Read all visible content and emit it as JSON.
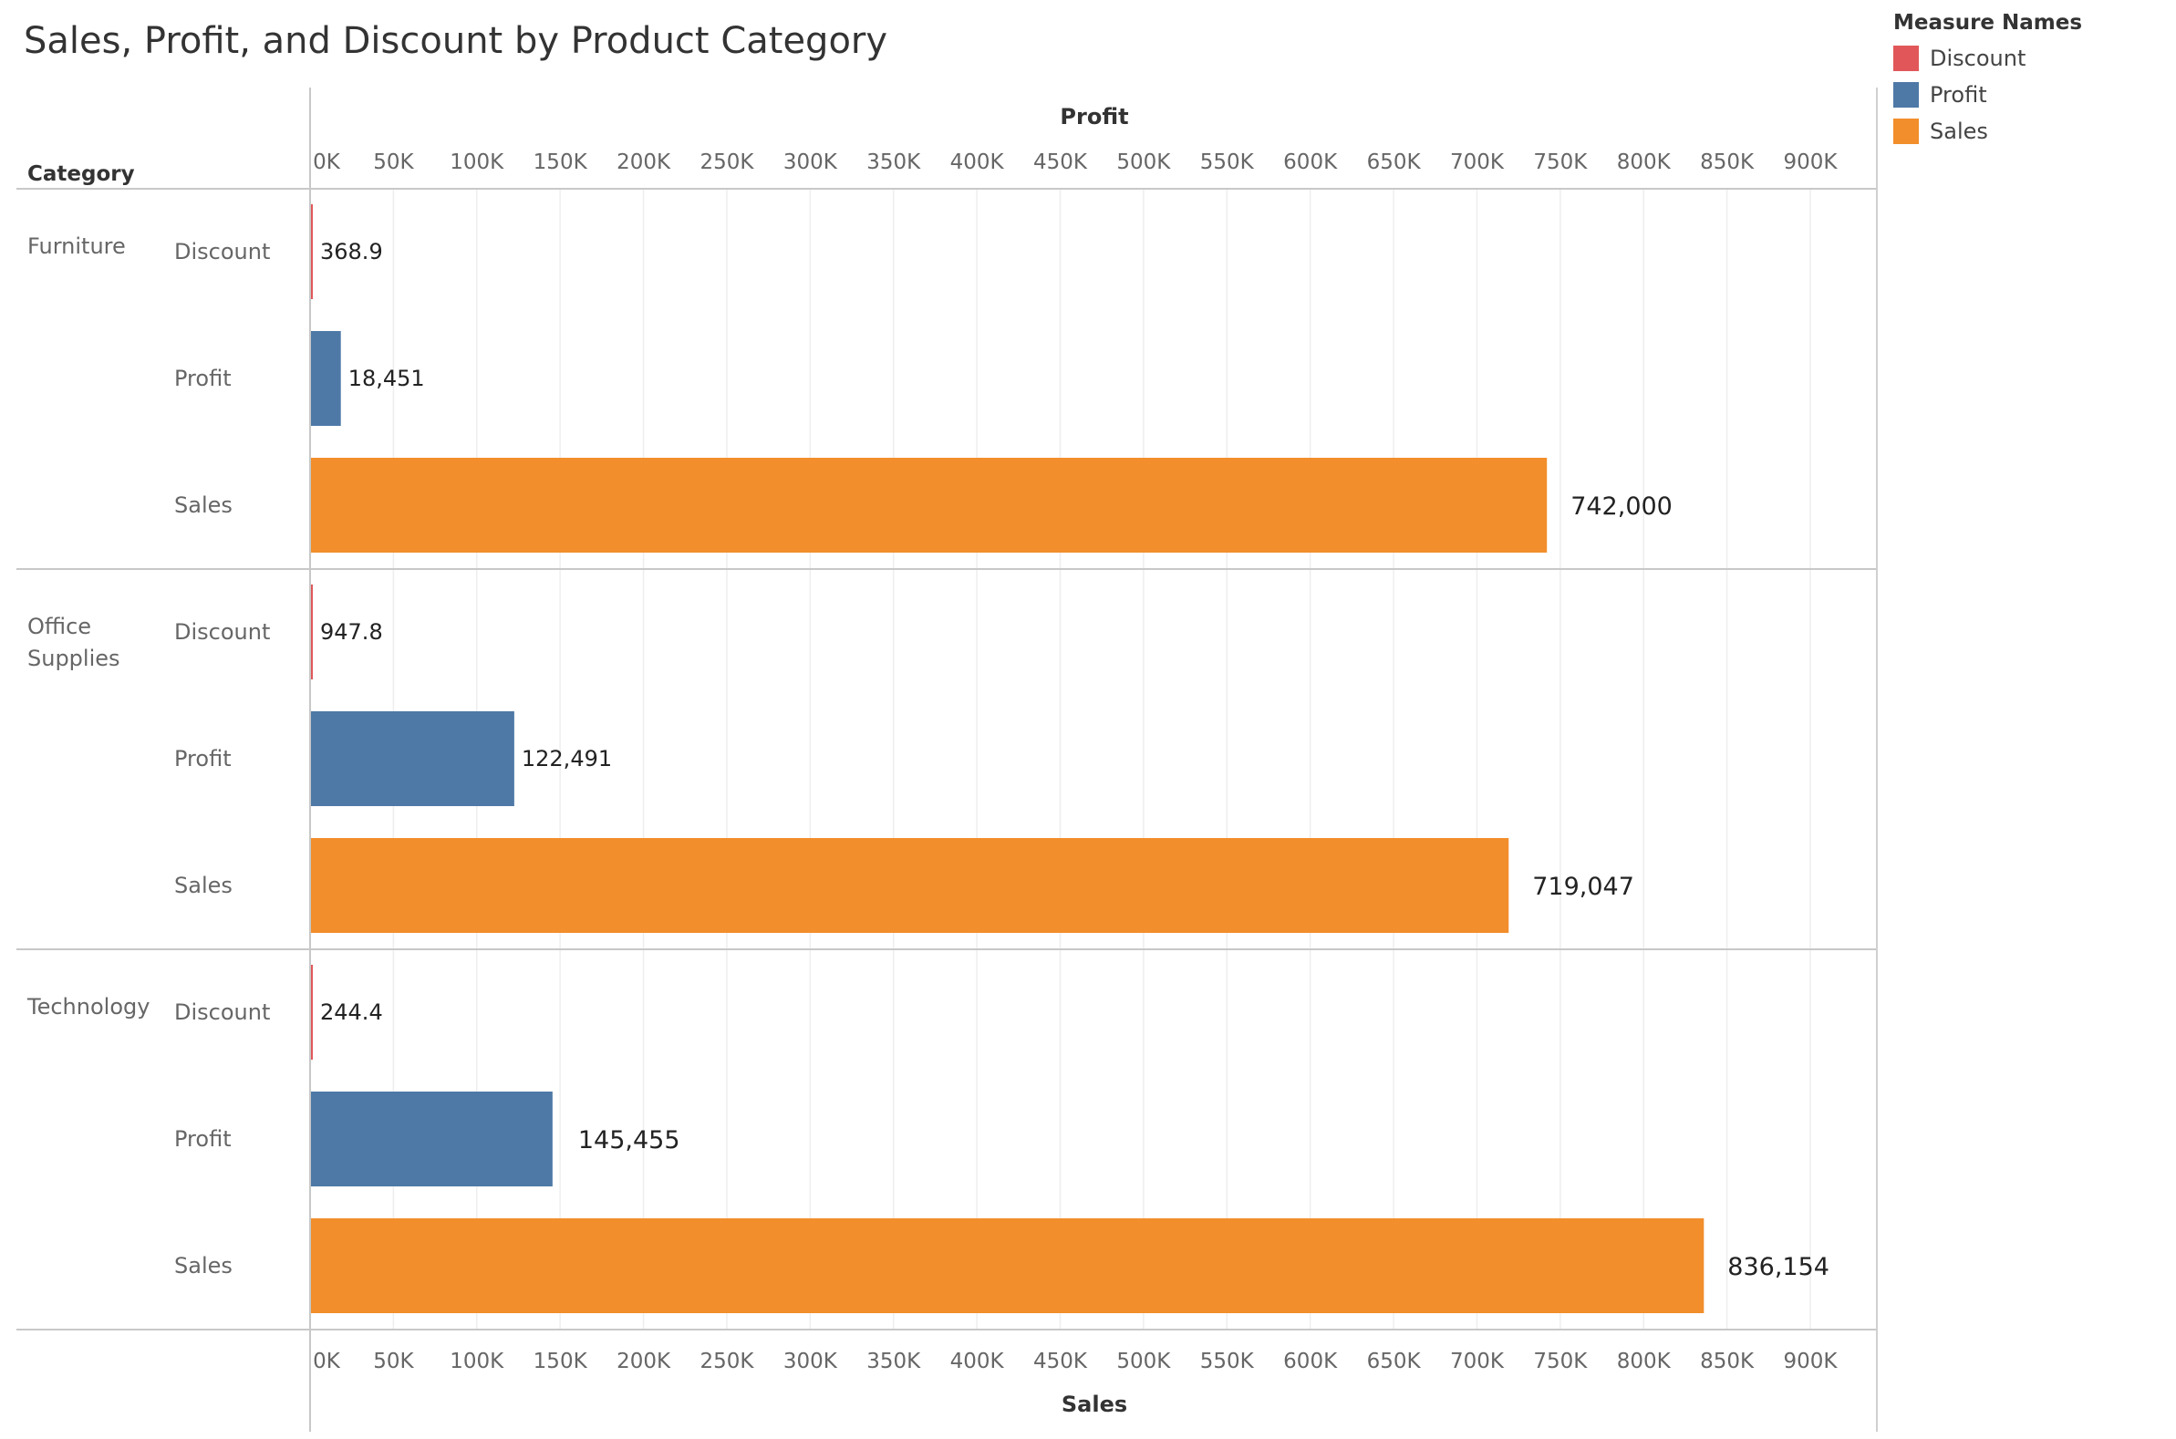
{
  "chart_data": {
    "type": "bar",
    "title": "Sales, Profit, and Discount by Product Category",
    "row_header": "Category",
    "top_axis_title": "Profit",
    "bottom_axis_title": "Sales",
    "xlim": [
      0,
      940000
    ],
    "ticks": [
      0,
      50000,
      100000,
      150000,
      200000,
      250000,
      300000,
      350000,
      400000,
      450000,
      500000,
      550000,
      600000,
      650000,
      700000,
      750000,
      800000,
      850000,
      900000
    ],
    "tick_labels": [
      "0K",
      "50K",
      "100K",
      "150K",
      "200K",
      "250K",
      "300K",
      "350K",
      "400K",
      "450K",
      "500K",
      "550K",
      "600K",
      "650K",
      "700K",
      "750K",
      "800K",
      "850K",
      "900K"
    ],
    "measures": [
      "Discount",
      "Profit",
      "Sales"
    ],
    "categories": [
      {
        "name": "Furniture",
        "name_lines": [
          "Furniture"
        ],
        "rows": [
          {
            "measure": "Discount",
            "value": 368.9,
            "label": "368.9"
          },
          {
            "measure": "Profit",
            "value": 18451,
            "label": "18,451"
          },
          {
            "measure": "Sales",
            "value": 742000,
            "label": "742,000"
          }
        ]
      },
      {
        "name": "Office Supplies",
        "name_lines": [
          "Office",
          "Supplies"
        ],
        "rows": [
          {
            "measure": "Discount",
            "value": 947.8,
            "label": "947.8"
          },
          {
            "measure": "Profit",
            "value": 122491,
            "label": "122,491"
          },
          {
            "measure": "Sales",
            "value": 719047,
            "label": "719,047"
          }
        ]
      },
      {
        "name": "Technology",
        "name_lines": [
          "Technology"
        ],
        "rows": [
          {
            "measure": "Discount",
            "value": 244.4,
            "label": "244.4"
          },
          {
            "measure": "Profit",
            "value": 145455,
            "label": "145,455"
          },
          {
            "measure": "Sales",
            "value": 836154,
            "label": "836,154"
          }
        ]
      }
    ],
    "colors": {
      "Discount": "#e15759",
      "Profit": "#4e79a7",
      "Sales": "#f28e2b"
    },
    "grid": true
  },
  "legend": {
    "title": "Measure Names",
    "items": [
      {
        "label": "Discount",
        "color": "#e15759"
      },
      {
        "label": "Profit",
        "color": "#4e79a7"
      },
      {
        "label": "Sales",
        "color": "#f28e2b"
      }
    ]
  }
}
